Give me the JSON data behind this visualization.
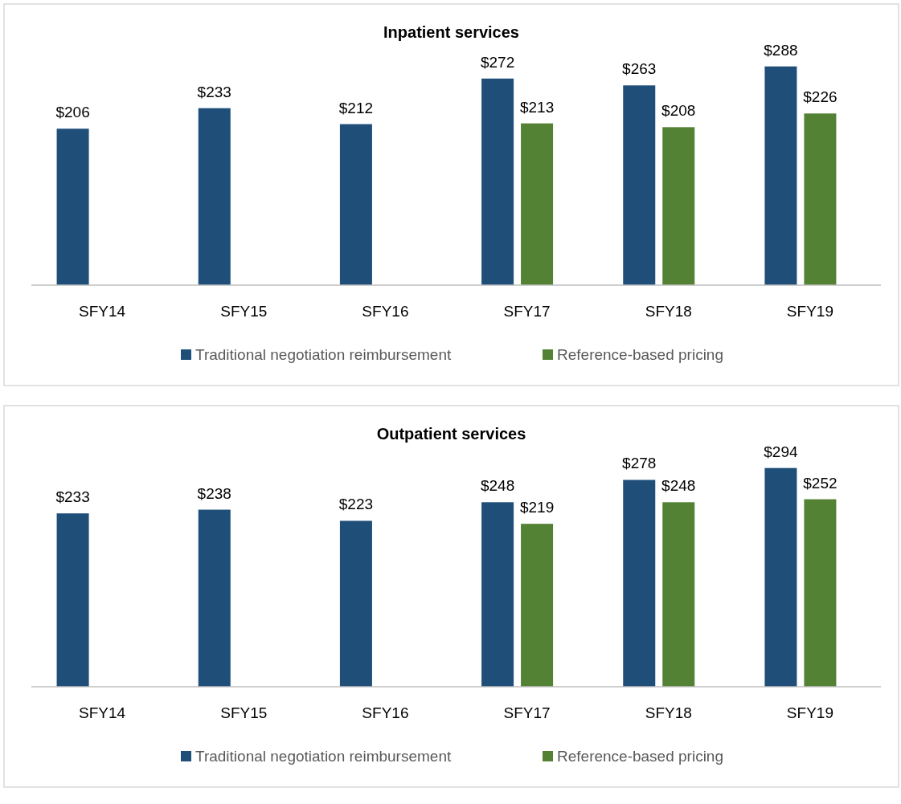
{
  "chart_data": [
    {
      "type": "bar",
      "title": "Inpatient services",
      "categories": [
        "SFY14",
        "SFY15",
        "SFY16",
        "SFY17",
        "SFY18",
        "SFY19"
      ],
      "relative": false,
      "legend": "bottom",
      "series": [
        {
          "name": "Traditional negotiation reimbursement",
          "color": "#1f4e79",
          "values": [
            206,
            233,
            212,
            272,
            263,
            288
          ],
          "value_labels": [
            "$206",
            "$233",
            "$212",
            "$272",
            "$263",
            "$288"
          ]
        },
        {
          "name": "Reference-based pricing",
          "color": "#548235",
          "values": [
            null,
            null,
            null,
            213,
            208,
            226
          ],
          "value_labels": [
            null,
            null,
            null,
            "$213",
            "$208",
            "$226"
          ]
        }
      ]
    },
    {
      "type": "bar",
      "title": "Outpatient services",
      "categories": [
        "SFY14",
        "SFY15",
        "SFY16",
        "SFY17",
        "SFY18",
        "SFY19"
      ],
      "relative": false,
      "legend": "bottom",
      "series": [
        {
          "name": "Traditional negotiation reimbursement",
          "color": "#1f4e79",
          "values": [
            233,
            238,
            223,
            248,
            278,
            294
          ],
          "value_labels": [
            "$233",
            "$238",
            "$223",
            "$248",
            "$278",
            "$294"
          ]
        },
        {
          "name": "Reference-based pricing",
          "color": "#548235",
          "values": [
            null,
            null,
            null,
            219,
            248,
            252
          ],
          "value_labels": [
            null,
            null,
            null,
            "$219",
            "$248",
            "$252"
          ]
        }
      ]
    }
  ]
}
